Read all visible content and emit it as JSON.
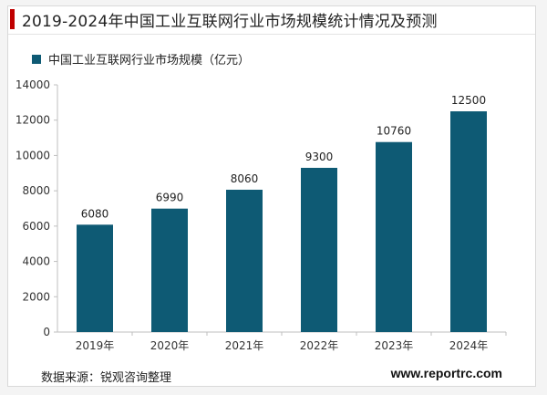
{
  "title": "2019-2024年中国工业互联网行业市场规模统计情况及预测",
  "source": "数据来源：锐观咨询整理",
  "website": "www.reportrc.com",
  "colors": {
    "bar": "#0e5a74",
    "accent": "#c00000"
  },
  "chart_data": {
    "type": "bar",
    "categories": [
      "2019年",
      "2020年",
      "2021年",
      "2022年",
      "2023年",
      "2024年"
    ],
    "series": [
      {
        "name": "中国工业互联网行业市场规模（亿元）",
        "values": [
          6080,
          6990,
          8060,
          9300,
          10760,
          12500
        ]
      }
    ],
    "ylim": [
      0,
      14000
    ],
    "yticks": [
      0,
      2000,
      4000,
      6000,
      8000,
      10000,
      12000,
      14000
    ],
    "legend": "top-left",
    "grid": false
  }
}
